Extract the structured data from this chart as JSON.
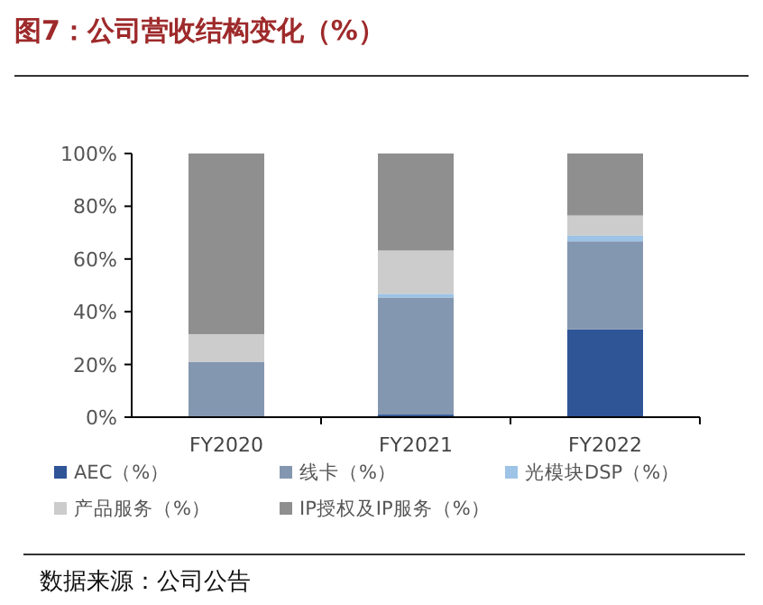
{
  "chart_data": {
    "type": "bar",
    "stacked": true,
    "title": "图7：公司营收结构变化（%）",
    "categories": [
      "FY2020",
      "FY2021",
      "FY2022"
    ],
    "series": [
      {
        "name": "AEC（%）",
        "color": "#2f5597",
        "values": [
          0,
          1,
          33.3
        ]
      },
      {
        "name": "线卡（%）",
        "color": "#8497b0",
        "values": [
          21,
          44.4,
          33.4
        ]
      },
      {
        "name": "光模块DSP（%）",
        "color": "#9dc3e6",
        "values": [
          0,
          1.4,
          2.2
        ]
      },
      {
        "name": "产品服务（%）",
        "color": "#cccccc",
        "values": [
          10.5,
          16.4,
          7.6
        ]
      },
      {
        "name": "IP授权及IP服务（%）",
        "color": "#8f8f8f",
        "values": [
          68.5,
          36.8,
          23.5
        ]
      }
    ],
    "ylim": [
      0,
      100
    ],
    "yticks": [
      {
        "value": 0,
        "label": "0%"
      },
      {
        "value": 20,
        "label": "20%"
      },
      {
        "value": 40,
        "label": "40%"
      },
      {
        "value": 60,
        "label": "60%"
      },
      {
        "value": 80,
        "label": "80%"
      },
      {
        "value": 100,
        "label": "100%"
      }
    ],
    "legend": "bottom",
    "annotations": [
      "数据来源：公司公告"
    ]
  }
}
